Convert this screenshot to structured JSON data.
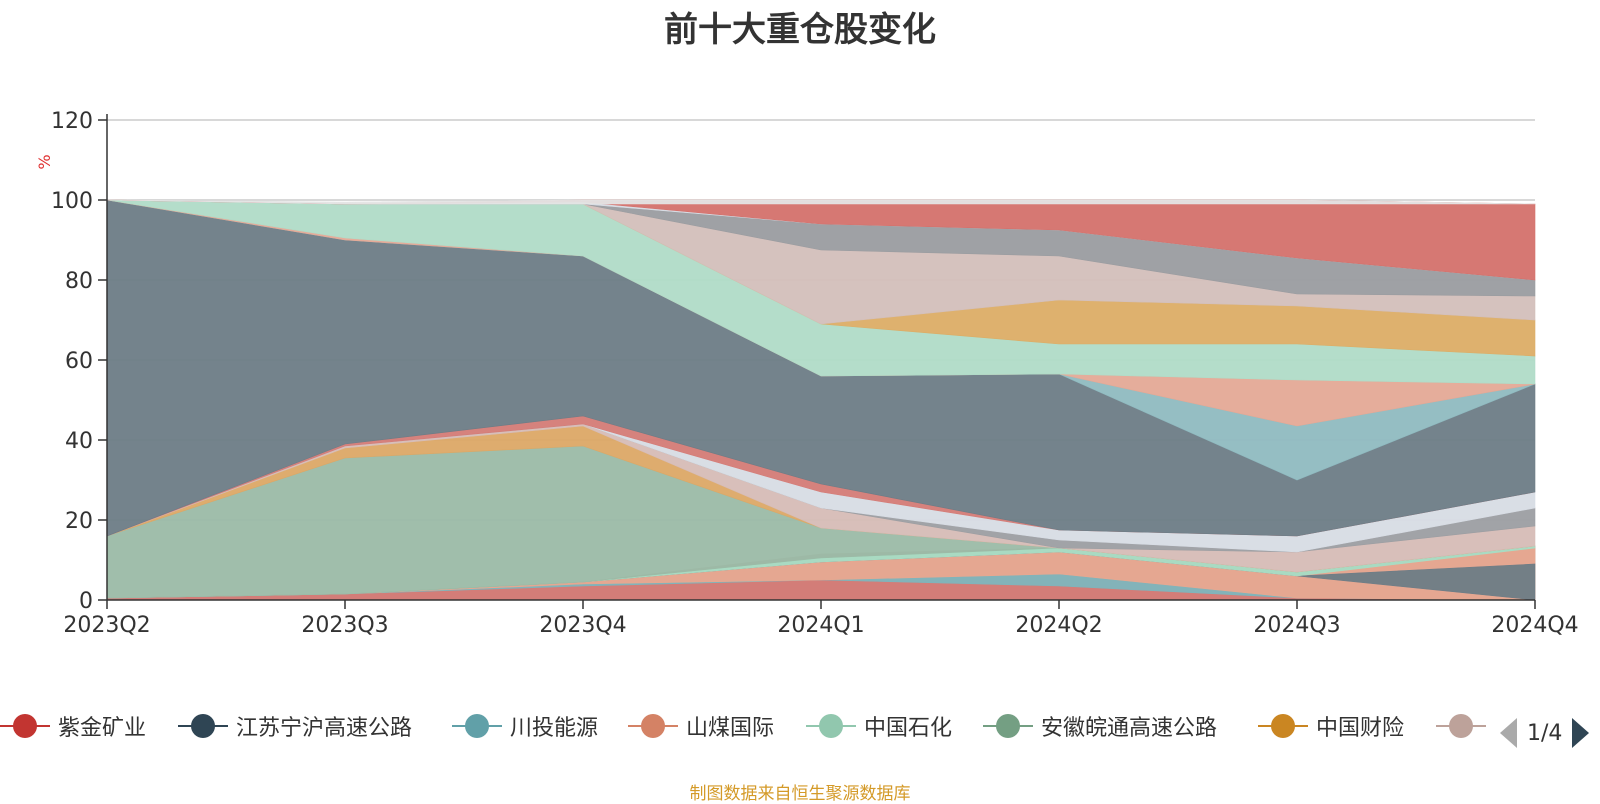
{
  "chart_data": {
    "type": "area",
    "title": "前十大重仓股变化",
    "ylabel": "%",
    "ylim": [
      0,
      120
    ],
    "yticks": [
      0,
      20,
      40,
      60,
      80,
      100,
      120
    ],
    "grid": true,
    "categories": [
      "2023Q2",
      "2023Q3",
      "2023Q4",
      "2024Q1",
      "2024Q2",
      "2024Q3",
      "2024Q4"
    ],
    "bands": [
      {
        "color": "#d5a39d",
        "upper": [
          0.5,
          1.5,
          4.5,
          11.5,
          13,
          7,
          13.5
        ],
        "lower": [
          0,
          0,
          0,
          0,
          0,
          0,
          0
        ]
      },
      {
        "color": "#c4a29c",
        "upper": [
          0.5,
          1.5,
          4.5,
          11.5,
          13,
          7,
          13.5
        ],
        "lower": [
          0,
          0,
          0,
          0,
          0,
          0,
          0
        ]
      },
      {
        "color": "#d47b76",
        "upper": [
          0.5,
          1.5,
          3.5,
          5.0,
          3.5,
          0.5,
          0.0
        ],
        "lower": [
          0,
          0,
          0,
          0,
          0,
          0,
          0
        ]
      },
      {
        "color": "#7fb4bb",
        "upper": [
          0.5,
          1.5,
          4.0,
          5.0,
          6.5,
          0.5,
          0.0
        ],
        "lower": [
          0.5,
          1.5,
          3.5,
          5.0,
          3.5,
          0.5,
          0.0
        ]
      },
      {
        "color": "#e7a890",
        "upper": [
          0.5,
          1.5,
          4.5,
          9.5,
          12,
          6.0,
          13.0
        ],
        "lower": [
          0.5,
          1.5,
          4.0,
          5.0,
          6.5,
          0.5,
          0.0
        ]
      },
      {
        "color": "#6d7c86",
        "upper": [
          0.5,
          1.5,
          4.5,
          9.5,
          12,
          6.0,
          9.0
        ],
        "lower": [
          0.5,
          1.5,
          4.5,
          9.5,
          12,
          6.0,
          0.0
        ]
      },
      {
        "color": "#a8ddc4",
        "upper": [
          0.5,
          1.5,
          4.5,
          10.5,
          13,
          7.0,
          13.5
        ],
        "lower": [
          0.5,
          1.5,
          4.5,
          9.5,
          12,
          6.0,
          13.0
        ]
      },
      {
        "color": "#9bbba6",
        "upper": [
          16,
          35.5,
          38.5,
          18,
          13,
          7,
          13.5
        ],
        "lower": [
          0.5,
          1.5,
          4.5,
          10.5,
          13,
          7,
          13.5
        ]
      },
      {
        "color": "#dca866",
        "upper": [
          16,
          38,
          43.5,
          18,
          13,
          7,
          13.5
        ],
        "lower": [
          16,
          35.5,
          38.5,
          18,
          13,
          7,
          13.5
        ]
      },
      {
        "color": "#d6bcb6",
        "upper": [
          16,
          38.5,
          44,
          23,
          13,
          12,
          18.5
        ],
        "lower": [
          16,
          38,
          43.5,
          18,
          13,
          7,
          13.5
        ]
      },
      {
        "color": "#9c9ea2",
        "upper": [
          16,
          38.5,
          44,
          23,
          15,
          12,
          23
        ],
        "lower": [
          16,
          38.5,
          44,
          23,
          13,
          12,
          18.5
        ]
      },
      {
        "color": "#d7dce4",
        "upper": [
          16,
          38.5,
          44,
          27,
          17.5,
          16,
          27
        ],
        "lower": [
          16,
          38.5,
          44,
          23,
          15,
          12,
          23
        ]
      },
      {
        "color": "#d47b76",
        "upper": [
          16,
          39,
          46,
          29,
          17.5,
          16,
          27
        ],
        "lower": [
          16,
          38.5,
          44,
          27,
          17.5,
          16,
          27
        ]
      },
      {
        "color": "#6d7c86",
        "upper": [
          100,
          90,
          86,
          56,
          56.5,
          30,
          54
        ],
        "lower": [
          16,
          39,
          46,
          29,
          17.5,
          16,
          27
        ]
      },
      {
        "color": "#8fbac0",
        "upper": [
          100,
          90,
          86,
          56,
          56.5,
          43.5,
          54
        ],
        "lower": [
          100,
          90,
          86,
          56,
          56.5,
          30,
          54
        ]
      },
      {
        "color": "#e4a996",
        "upper": [
          100,
          90.5,
          86,
          56,
          56.5,
          55,
          54
        ],
        "lower": [
          100,
          90,
          86,
          56,
          56.5,
          43.5,
          54
        ]
      },
      {
        "color": "#b0dbc7",
        "upper": [
          100,
          99,
          99,
          69,
          64,
          64,
          61
        ],
        "lower": [
          100,
          90.5,
          86,
          56,
          56.5,
          55,
          54
        ]
      },
      {
        "color": "#dcad66",
        "upper": [
          100,
          99,
          99,
          69,
          75,
          73.5,
          70
        ],
        "lower": [
          100,
          99,
          99,
          69,
          64,
          64,
          61
        ]
      },
      {
        "color": "#d3bfba",
        "upper": [
          100,
          99,
          99,
          87.5,
          86,
          76.5,
          76
        ],
        "lower": [
          100,
          99,
          99,
          69,
          75,
          73.5,
          70
        ]
      },
      {
        "color": "#9a9ca0",
        "upper": [
          100,
          99,
          99,
          94,
          92.5,
          85.5,
          80
        ],
        "lower": [
          100,
          99,
          99,
          87.5,
          86,
          76.5,
          76
        ]
      },
      {
        "color": "#d7dce4",
        "upper": [
          100,
          99,
          99.5,
          94,
          92.5,
          85.5,
          80
        ],
        "lower": [
          100,
          99,
          99,
          94,
          92.5,
          85.5,
          80
        ]
      },
      {
        "color": "#d4716c",
        "upper": [
          100,
          99,
          100,
          100,
          100,
          100,
          99
        ],
        "lower": [
          100,
          99,
          99.5,
          94,
          92.5,
          85.5,
          80
        ]
      },
      {
        "color": "#e4e4e4",
        "upper": [
          100,
          99.5,
          100,
          100,
          100,
          100,
          99
        ],
        "lower": [
          100,
          99,
          99,
          99,
          99,
          99,
          99
        ]
      }
    ]
  },
  "legend": {
    "items": [
      {
        "label": "紫金矿业",
        "color": "#c23531"
      },
      {
        "label": "江苏宁沪高速公路",
        "color": "#2f4554"
      },
      {
        "label": "川投能源",
        "color": "#61a0a8"
      },
      {
        "label": "山煤国际",
        "color": "#d48265"
      },
      {
        "label": "中国石化",
        "color": "#91c7ae"
      },
      {
        "label": "安徽皖通高速公路",
        "color": "#749f83"
      },
      {
        "label": "中国财险",
        "color": "#ca8622"
      },
      {
        "label": "",
        "color": "#bda29a"
      }
    ],
    "page": "1/4"
  },
  "source_note": "制图数据来自恒生聚源数据库"
}
